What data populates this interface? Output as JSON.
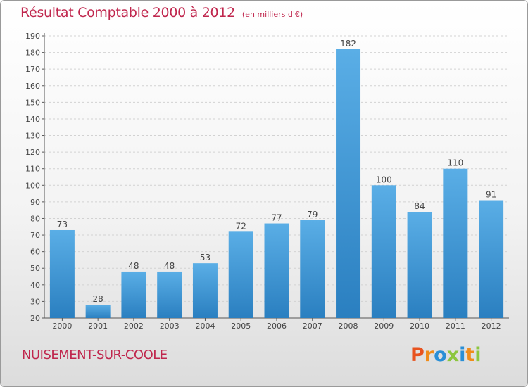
{
  "header": {
    "title": "Résultat Comptable 2000 à 2012",
    "subtitle": "(en milliers d'€)"
  },
  "footer": {
    "commune": "NUISEMENT-SUR-COOLE",
    "logo_text": "Proxiti"
  },
  "colors": {
    "title": "#c0264d",
    "bar_light": "#5aaee6",
    "bar_dark": "#2a7fc0",
    "logo_letters": [
      "#e8531f",
      "#f08c1a",
      "#2a8fd6",
      "#8cc63e",
      "#2a8fd6",
      "#f08c1a",
      "#8cc63e"
    ]
  },
  "chart_data": {
    "type": "bar",
    "categories": [
      "2000",
      "2001",
      "2002",
      "2003",
      "2004",
      "2005",
      "2006",
      "2007",
      "2008",
      "2009",
      "2010",
      "2011",
      "2012"
    ],
    "values": [
      73,
      28,
      48,
      48,
      53,
      72,
      77,
      79,
      182,
      100,
      84,
      110,
      91
    ],
    "ylim": [
      20,
      190
    ],
    "yticks": [
      20,
      30,
      40,
      50,
      60,
      70,
      80,
      90,
      100,
      110,
      120,
      130,
      140,
      150,
      160,
      170,
      180,
      190
    ],
    "grid": true,
    "data_labels": true
  }
}
